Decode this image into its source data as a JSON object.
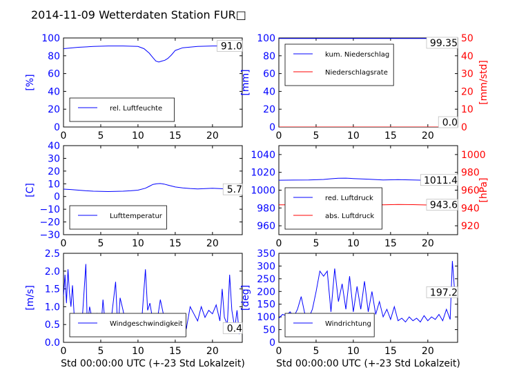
{
  "figure": {
    "title": "2014-11-09 Wetterdaten Station FUR□"
  },
  "colors": {
    "blue": "#0000ff",
    "red": "#ff0000",
    "black": "#000000"
  },
  "chart_data": [
    {
      "id": "humidity",
      "type": "line",
      "xlim": [
        0,
        24
      ],
      "xticks": [
        0,
        5,
        10,
        15,
        20
      ],
      "ylim": [
        0,
        100
      ],
      "yticks": [
        0,
        20,
        40,
        60,
        80,
        100
      ],
      "ylabel": "[%]",
      "last_value": "91.0",
      "legend": [
        "rel. Luftfeuchte"
      ],
      "legend_position": "lower-left",
      "series": [
        {
          "name": "rel. Luftfeuchte",
          "color": "#0000ff",
          "x": [
            0,
            2,
            4,
            6,
            8,
            10,
            10.8,
            11.5,
            12,
            12.4,
            12.8,
            13.2,
            13.6,
            14,
            14.5,
            15,
            16,
            18,
            20,
            22,
            24
          ],
          "y": [
            88,
            89.5,
            90.5,
            91,
            91,
            90.5,
            88,
            83,
            78,
            74,
            73,
            74,
            75,
            77,
            81,
            86,
            89,
            90.5,
            91,
            91,
            91
          ]
        }
      ]
    },
    {
      "id": "precipitation",
      "type": "line",
      "xlim": [
        0,
        24
      ],
      "xticks": [
        0,
        5,
        10,
        15,
        20
      ],
      "ylim": [
        0,
        100
      ],
      "yticks": [
        0,
        20,
        40,
        60,
        80,
        100
      ],
      "ylabel": "[mm]",
      "ylim2": [
        0,
        50
      ],
      "yticks2": [
        0,
        10,
        20,
        30,
        40,
        50
      ],
      "ylabel2": "[mm/std]",
      "last_value": "99.35",
      "last_value2": "0.0",
      "legend": [
        "kum. Niederschlag",
        "Niederschlagsrate"
      ],
      "legend_position": "upper-left",
      "series": [
        {
          "name": "kum. Niederschlag",
          "color": "#0000ff",
          "x": [
            0,
            24
          ],
          "y": [
            99.35,
            99.35
          ]
        },
        {
          "name": "Niederschlagsrate",
          "color": "#ff0000",
          "axis": "right",
          "x": [
            0,
            24
          ],
          "y": [
            0,
            0
          ]
        }
      ]
    },
    {
      "id": "temperature",
      "type": "line",
      "xlim": [
        0,
        24
      ],
      "xticks": [
        0,
        5,
        10,
        15,
        20
      ],
      "ylim": [
        -30,
        40
      ],
      "yticks": [
        -30,
        -20,
        -10,
        0,
        10,
        20,
        30,
        40
      ],
      "ylabel": "[C]",
      "last_value": "5.7",
      "legend": [
        "Lufttemperatur"
      ],
      "legend_position": "lower-left",
      "series": [
        {
          "name": "Lufttemperatur",
          "color": "#0000ff",
          "x": [
            0,
            1,
            2,
            3,
            4,
            5,
            6,
            7,
            8,
            9,
            10,
            11,
            11.5,
            12,
            12.5,
            13,
            13.5,
            14,
            15,
            16,
            17,
            18,
            19,
            20,
            21,
            22,
            23,
            24
          ],
          "y": [
            5.8,
            5.5,
            5.0,
            4.5,
            4.2,
            4.0,
            3.9,
            4.0,
            4.2,
            4.5,
            5.0,
            6.5,
            8.0,
            9.5,
            10.0,
            10.2,
            9.8,
            9.0,
            7.5,
            6.8,
            6.3,
            6.0,
            6.2,
            6.5,
            6.2,
            5.9,
            5.8,
            5.7
          ]
        }
      ]
    },
    {
      "id": "pressure",
      "type": "line",
      "xlim": [
        0,
        24
      ],
      "xticks": [
        0,
        5,
        10,
        15,
        20
      ],
      "ylim": [
        950,
        1050
      ],
      "yticks": [
        960,
        980,
        1000,
        1020,
        1040
      ],
      "ylim2": [
        910,
        1010
      ],
      "yticks2": [
        920,
        940,
        960,
        980,
        1000
      ],
      "ylabel2": "[hPa]",
      "last_value": "1011.4",
      "last_value2": "943.6",
      "legend": [
        "red. Luftdruck",
        "abs. Luftdruck"
      ],
      "legend_position": "lower-left",
      "series": [
        {
          "name": "red. Luftdruck",
          "color": "#0000ff",
          "x": [
            0,
            2,
            4,
            6,
            7,
            8,
            9,
            10,
            12,
            14,
            16,
            18,
            20,
            22,
            24
          ],
          "y": [
            1011.2,
            1011.3,
            1011.5,
            1012.0,
            1012.8,
            1013.4,
            1013.5,
            1013.0,
            1012.3,
            1011.5,
            1011.8,
            1011.5,
            1011.0,
            1011.2,
            1011.4
          ]
        },
        {
          "name": "abs. Luftdruck",
          "color": "#ff0000",
          "axis": "right",
          "x": [
            0,
            2,
            4,
            6,
            8,
            10,
            12,
            14,
            16,
            18,
            20,
            22,
            24
          ],
          "y": [
            943.5,
            943.6,
            943.8,
            944.2,
            945.0,
            944.8,
            944.2,
            943.6,
            943.9,
            943.7,
            943.3,
            943.4,
            943.6
          ]
        }
      ]
    },
    {
      "id": "wind_speed",
      "type": "line",
      "xlim": [
        0,
        24
      ],
      "xticks": [
        0,
        5,
        10,
        15,
        20
      ],
      "ylim": [
        0,
        2.5
      ],
      "yticks": [
        0,
        0.5,
        1.0,
        1.5,
        2.0,
        2.5
      ],
      "ylabel": "[m/s]",
      "xlabel": "Std 00:00:00 UTC (+-23 Std Lokalzeit)",
      "last_value": "0.4",
      "legend": [
        "Windgeschwindigkeit"
      ],
      "legend_position": "lower-left",
      "series": [
        {
          "name": "Windgeschwindigkeit",
          "color": "#0000ff",
          "x": [
            0,
            0.2,
            0.4,
            0.6,
            0.8,
            1.0,
            1.2,
            1.5,
            2.0,
            2.5,
            3.0,
            3.2,
            3.5,
            4.0,
            4.5,
            5.0,
            5.3,
            5.6,
            6.0,
            6.5,
            7.0,
            7.3,
            7.6,
            8.0,
            8.5,
            9.0,
            9.5,
            10.0,
            10.5,
            11.0,
            11.3,
            11.6,
            12.0,
            12.5,
            13.0,
            13.5,
            14.0,
            14.5,
            15.0,
            15.5,
            16.0,
            16.5,
            17.0,
            17.5,
            18.0,
            18.5,
            19.0,
            19.5,
            20.0,
            20.5,
            21.0,
            21.3,
            21.6,
            22.0,
            22.3,
            22.6,
            23.0,
            23.3,
            23.6,
            24.0
          ],
          "y": [
            1.3,
            1.9,
            1.1,
            2.05,
            1.4,
            1.0,
            1.6,
            0.5,
            0.7,
            0.6,
            2.2,
            0.4,
            1.0,
            0.5,
            0.8,
            0.3,
            1.2,
            0.5,
            0.25,
            0.8,
            1.7,
            0.3,
            1.25,
            0.9,
            0.35,
            0.8,
            0.4,
            0.7,
            0.6,
            2.05,
            0.9,
            1.1,
            0.6,
            0.5,
            1.2,
            0.7,
            0.4,
            0.5,
            0.6,
            0.3,
            0.7,
            0.4,
            1.0,
            0.8,
            0.6,
            1.0,
            0.7,
            0.9,
            0.8,
            1.05,
            0.6,
            1.5,
            0.7,
            0.5,
            1.9,
            0.9,
            0.4,
            0.9,
            0.25,
            0.4
          ]
        }
      ]
    },
    {
      "id": "wind_direction",
      "type": "line",
      "xlim": [
        0,
        24
      ],
      "xticks": [
        0,
        5,
        10,
        15,
        20
      ],
      "ylim": [
        0,
        350
      ],
      "yticks": [
        0,
        50,
        100,
        150,
        200,
        250,
        300,
        350
      ],
      "ylabel": "[deg]",
      "xlabel": "Std 00:00:00 UTC (+-23 Std Lokalzeit)",
      "last_value": "197.2",
      "legend": [
        "Windrichtung"
      ],
      "legend_position": "lower-left",
      "series": [
        {
          "name": "Windrichtung",
          "color": "#0000ff",
          "x": [
            0,
            0.5,
            1.0,
            1.5,
            2.0,
            2.5,
            3.0,
            3.5,
            4.0,
            4.5,
            5.0,
            5.5,
            6.0,
            6.5,
            7.0,
            7.5,
            8.0,
            8.5,
            9.0,
            9.5,
            10.0,
            10.5,
            11.0,
            11.5,
            12.0,
            12.5,
            13.0,
            13.5,
            14.0,
            14.5,
            15.0,
            15.5,
            16.0,
            16.5,
            17.0,
            17.5,
            18.0,
            18.5,
            19.0,
            19.5,
            20.0,
            20.5,
            21.0,
            21.5,
            22.0,
            22.5,
            23.0,
            23.3,
            23.6,
            24.0
          ],
          "y": [
            95,
            110,
            105,
            120,
            100,
            130,
            180,
            110,
            95,
            130,
            200,
            280,
            260,
            280,
            120,
            290,
            160,
            230,
            130,
            260,
            120,
            220,
            130,
            240,
            120,
            200,
            110,
            160,
            100,
            130,
            90,
            140,
            85,
            95,
            80,
            100,
            85,
            95,
            80,
            105,
            85,
            100,
            90,
            110,
            85,
            130,
            90,
            320,
            200,
            197
          ]
        }
      ]
    }
  ]
}
